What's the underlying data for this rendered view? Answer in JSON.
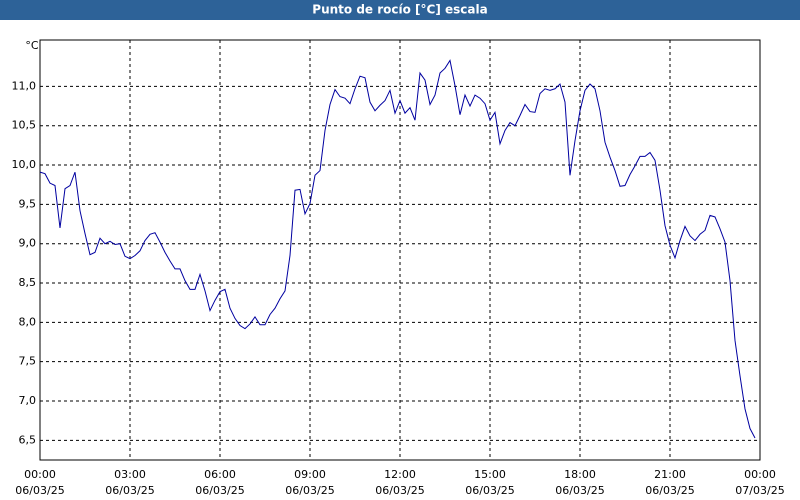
{
  "chart_data": {
    "type": "line",
    "title": "Punto de rocío [°C] escala",
    "y_unit": "°C",
    "x": [
      0,
      10,
      20,
      30,
      40,
      50,
      60,
      70,
      80,
      90,
      100,
      110,
      120,
      130,
      140,
      150,
      160,
      170,
      180,
      190,
      200,
      210,
      220,
      230,
      240,
      250,
      260,
      270,
      280,
      290,
      300,
      310,
      320,
      330,
      340,
      350,
      360,
      370,
      380,
      390,
      400,
      410,
      420,
      430,
      440,
      450,
      460,
      470,
      480,
      490,
      500,
      510,
      520,
      530,
      540,
      550,
      560,
      570,
      580,
      590,
      600,
      610,
      620,
      630,
      640,
      650,
      660,
      670,
      680,
      690,
      700,
      710,
      720,
      730,
      740,
      750,
      760,
      770,
      780,
      790,
      800,
      810,
      820,
      830,
      840,
      850,
      860,
      870,
      880,
      890,
      900,
      910,
      920,
      930,
      940,
      950,
      960,
      970,
      980,
      990,
      1000,
      1010,
      1020,
      1030,
      1040,
      1050,
      1060,
      1070,
      1080,
      1090,
      1100,
      1110,
      1120,
      1130,
      1140,
      1150,
      1160,
      1170,
      1180,
      1190,
      1200,
      1210,
      1220,
      1230,
      1240,
      1250,
      1260,
      1270,
      1280,
      1290,
      1300,
      1310,
      1320,
      1330,
      1340,
      1350,
      1360,
      1370,
      1380,
      1390,
      1400,
      1410,
      1420,
      1430
    ],
    "series": [
      {
        "color": "#0000a0",
        "values": [
          9.91,
          9.89,
          9.77,
          9.74,
          9.2,
          9.7,
          9.74,
          9.91,
          9.42,
          9.13,
          8.86,
          8.89,
          9.07,
          9.0,
          9.03,
          8.99,
          9.0,
          8.84,
          8.81,
          8.85,
          8.91,
          9.04,
          9.12,
          9.14,
          9.02,
          8.89,
          8.78,
          8.68,
          8.68,
          8.53,
          8.42,
          8.42,
          8.61,
          8.4,
          8.15,
          8.28,
          8.39,
          8.42,
          8.18,
          8.05,
          7.96,
          7.92,
          7.98,
          8.07,
          7.97,
          7.97,
          8.1,
          8.18,
          8.3,
          8.4,
          8.85,
          9.68,
          9.69,
          9.38,
          9.51,
          9.87,
          9.93,
          10.44,
          10.77,
          10.96,
          10.87,
          10.85,
          10.78,
          10.97,
          11.13,
          11.11,
          10.8,
          10.69,
          10.76,
          10.82,
          10.95,
          10.66,
          10.82,
          10.66,
          10.73,
          10.57,
          11.17,
          11.08,
          10.77,
          10.89,
          11.17,
          11.23,
          11.33,
          11.01,
          10.64,
          10.89,
          10.75,
          10.89,
          10.85,
          10.78,
          10.57,
          10.67,
          10.27,
          10.44,
          10.54,
          10.5,
          10.63,
          10.77,
          10.68,
          10.67,
          10.91,
          10.97,
          10.95,
          10.97,
          11.03,
          10.8,
          9.87,
          10.31,
          10.69,
          10.95,
          11.03,
          10.97,
          10.69,
          10.29,
          10.1,
          9.93,
          9.73,
          9.74,
          9.88,
          9.99,
          10.11,
          10.11,
          10.16,
          10.06,
          9.68,
          9.23,
          8.98,
          8.82,
          9.04,
          9.22,
          9.1,
          9.04,
          9.12,
          9.17,
          9.36,
          9.34,
          9.19,
          9.02,
          8.53,
          7.77,
          7.32,
          6.9,
          6.65,
          6.53
        ]
      }
    ],
    "xlim": [
      0,
      1440
    ],
    "xticks": [
      {
        "value": 0,
        "label": "00:00"
      },
      {
        "value": 180,
        "label": "03:00"
      },
      {
        "value": 360,
        "label": "06:00"
      },
      {
        "value": 540,
        "label": "09:00"
      },
      {
        "value": 720,
        "label": "12:00"
      },
      {
        "value": 900,
        "label": "15:00"
      },
      {
        "value": 1080,
        "label": "18:00"
      },
      {
        "value": 1260,
        "label": "21:00"
      },
      {
        "value": 1440,
        "label": "00:00"
      }
    ],
    "xtick_dates": [
      "06/03/25",
      "06/03/25",
      "06/03/25",
      "06/03/25",
      "06/03/25",
      "06/03/25",
      "06/03/25",
      "06/03/25",
      "07/03/25"
    ],
    "ylim": [
      6.25,
      11.59
    ],
    "yticks": [
      {
        "value": 6.5,
        "label": "6,5"
      },
      {
        "value": 7,
        "label": "7,0"
      },
      {
        "value": 7.5,
        "label": "7,5"
      },
      {
        "value": 8,
        "label": "8,0"
      },
      {
        "value": 8.5,
        "label": "8,5"
      },
      {
        "value": 9,
        "label": "9,0"
      },
      {
        "value": 9.5,
        "label": "9,5"
      },
      {
        "value": 10,
        "label": "10,0"
      },
      {
        "value": 10.5,
        "label": "10,5"
      },
      {
        "value": 11,
        "label": "11,0"
      }
    ],
    "grid": true
  }
}
